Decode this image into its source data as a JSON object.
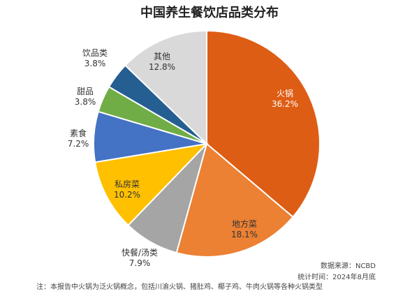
{
  "chart_data": {
    "type": "pie",
    "title": "中国养生餐饮店品类分布",
    "categories": [
      "火锅",
      "地方菜",
      "快餐/汤类",
      "私房菜",
      "素食",
      "甜品",
      "饮品类",
      "其他"
    ],
    "values": [
      36.2,
      18.1,
      7.9,
      10.2,
      7.2,
      3.8,
      3.8,
      12.8
    ],
    "value_labels": [
      "36.2%",
      "18.1%",
      "7.9%",
      "10.2%",
      "7.2%",
      "3.8%",
      "3.8%",
      "12.8%"
    ],
    "colors": [
      "#DE5D14",
      "#EC8033",
      "#A5A5A5",
      "#FFC000",
      "#4472C4",
      "#70AD47",
      "#255E91",
      "#D9D9D9"
    ],
    "legend": "none"
  },
  "notes": {
    "source": "数据来源：NCBD",
    "time": "统计时间：2024年8月底",
    "footnote": "注：本报告中火锅为泛火锅概念，包括川渝火锅、猪肚鸡、椰子鸡、牛肉火锅等各种火锅类型"
  }
}
